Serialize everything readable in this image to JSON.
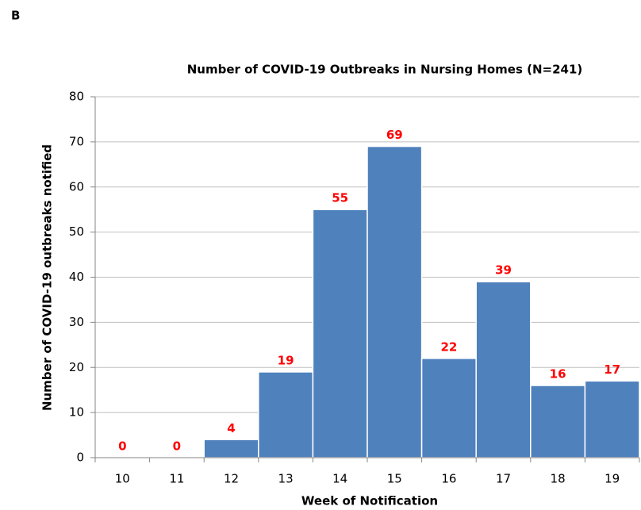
{
  "panel_label": "B",
  "chart_data": {
    "type": "bar",
    "title": "Number of COVID-19 Outbreaks in Nursing Homes (N=241)",
    "x_label": "Week of Notification",
    "y_label": "Number of COVID-19 outbreaks notified",
    "categories": [
      "10",
      "11",
      "12",
      "13",
      "14",
      "15",
      "16",
      "17",
      "18",
      "19"
    ],
    "values": [
      0,
      0,
      4,
      19,
      55,
      69,
      22,
      39,
      16,
      17
    ],
    "color": "#4f81bd",
    "label_color": "#ff0000",
    "ylim": [
      0,
      80
    ],
    "yticks": [
      0,
      10,
      20,
      30,
      40,
      50,
      60,
      70,
      80
    ],
    "grid": true
  }
}
